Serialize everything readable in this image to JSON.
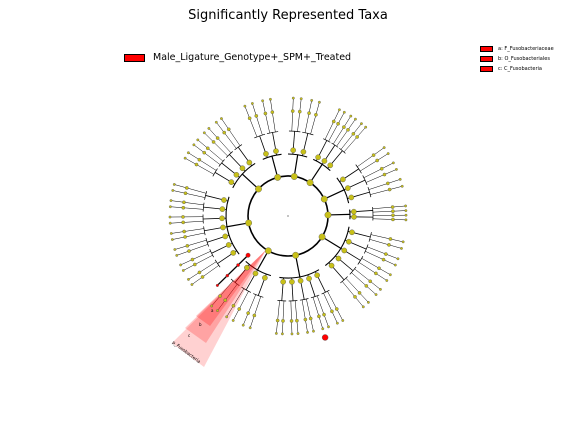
{
  "title": "Significantly Represented Taxa",
  "legend": {
    "label": "Male_Ligature_Genotype+_SPM+_Treated",
    "color": "#ff0000"
  },
  "taxa_legend": [
    {
      "label": "a: F_Fusobacteriaceae",
      "color": "#ff0000"
    },
    {
      "label": "b: O_Fusobacteriales",
      "color": "#ff0000"
    },
    {
      "label": "c: C_Fusobacteria",
      "color": "#ff0000"
    }
  ],
  "highlighted_clade": {
    "labels": [
      "a",
      "b",
      "c"
    ],
    "phylum_label": "p_Fusobacteria",
    "color": "#ff0000"
  },
  "colors": {
    "node_default": "#c8c018",
    "node_highlight": "#ff0000",
    "edge": "#000000"
  }
}
